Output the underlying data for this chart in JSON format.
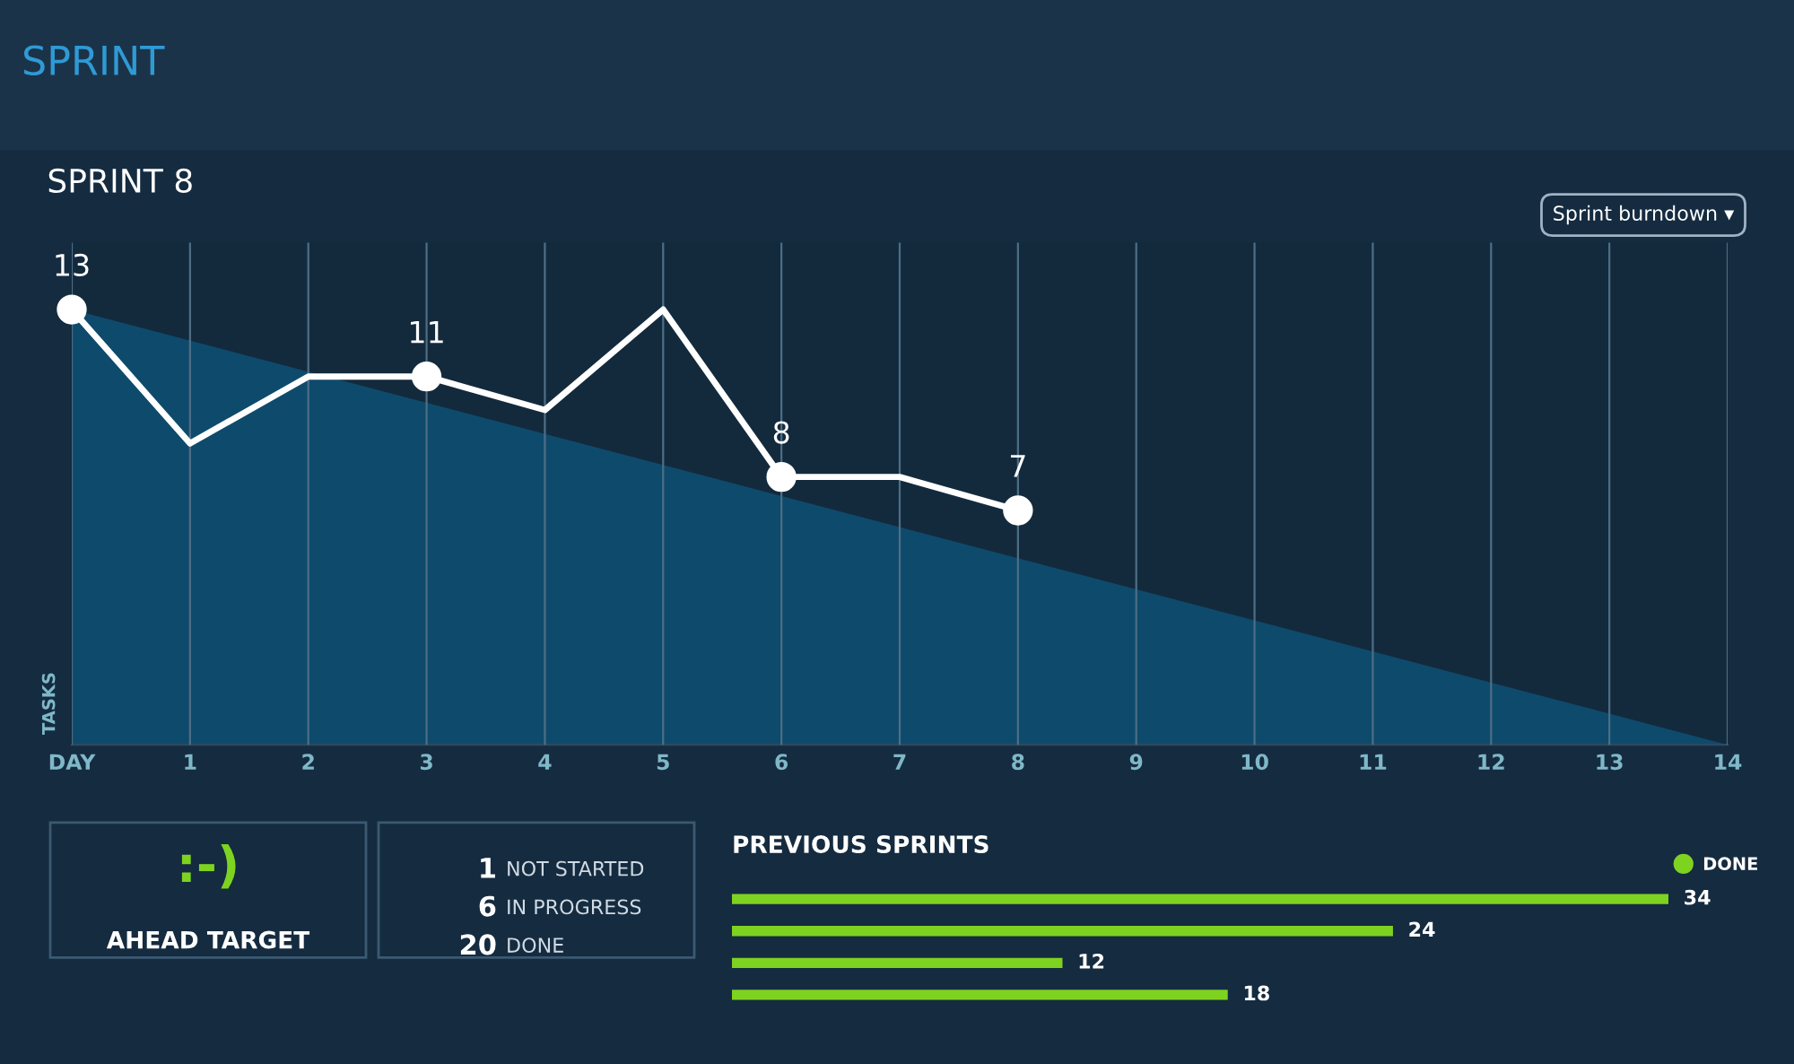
{
  "chart_data": [
    {
      "type": "line",
      "title": "SPRINT 8",
      "ylabel": "TASKS",
      "annotations": [
        "SPRINT",
        "Sprint burndown ▾"
      ],
      "xlim": [
        0,
        14
      ],
      "ylim": [
        0,
        15
      ],
      "xticks": [
        {
          "value": 0,
          "label": "DAY"
        },
        1,
        2,
        3,
        4,
        5,
        6,
        7,
        8,
        9,
        10,
        11,
        12,
        13,
        14
      ],
      "tick_labels": "x",
      "grid": "x",
      "series": [
        {
          "type": "area",
          "color": "#0e4a6c",
          "x": [
            0,
            14
          ],
          "values": [
            13,
            0
          ]
        },
        {
          "type": "line",
          "color": "#ffffff",
          "x": [
            0,
            1,
            2,
            3,
            4,
            5,
            6,
            7,
            8
          ],
          "values": [
            13,
            9,
            11,
            11,
            10,
            13,
            8,
            8,
            7
          ],
          "value_labels": [
            "13",
            null,
            null,
            "11",
            null,
            null,
            "8",
            null,
            "7"
          ]
        }
      ]
    },
    {
      "type": "other",
      "annotations": [
        ":-)",
        "AHEAD TARGET",
        "1 NOT STARTED",
        "6 IN PROGRESS",
        "20 DONE"
      ]
    },
    {
      "type": "bar",
      "orientation": "horizontal",
      "title": "PREVIOUS SPRINTS",
      "categories": [
        null,
        null,
        null,
        null
      ],
      "series": [
        {
          "name": "DONE",
          "color": "#7ed321",
          "values": [
            34,
            24,
            12,
            18
          ]
        }
      ],
      "data_labels": true,
      "legend": "top right"
    }
  ]
}
